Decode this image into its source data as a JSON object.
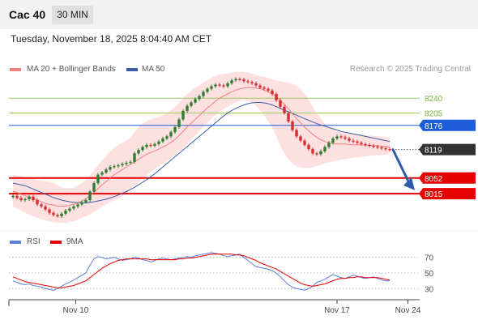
{
  "header": {
    "symbol": "Cac 40",
    "timeframe": "30 MIN"
  },
  "datetime": "Tuesday, November 18, 2025 8:04:40 AM CET",
  "legend": {
    "ma20_label": "MA 20 + Bollinger Bands",
    "ma50_label": "MA 50",
    "credit": "Research © 2025 Trading Central",
    "rsi_label": "RSI",
    "rsi_ma_label": "9MA"
  },
  "colors": {
    "ma20": "#f08080",
    "band_fill": "#fde0e0",
    "ma50": "#3b5ea8",
    "candle_up": "#2e7d32",
    "candle_down": "#d32f2f",
    "level_green": "#9ccc65",
    "level_blue": "#1e5bd8",
    "level_red": "#e60000",
    "last_price": "#333333",
    "rsi": "#5c7fdc",
    "rsi_ma": "#e60000",
    "arrow": "#2f5ca8"
  },
  "chart_data": [
    {
      "type": "candlestick",
      "title": "Cac 40",
      "timeframe": "30 MIN",
      "x_tick_labels": [
        "Nov 10",
        "Nov 17",
        "Nov 24"
      ],
      "ylim": [
        7960,
        8290
      ],
      "levels": [
        {
          "value": 8240,
          "label": "8240",
          "kind": "resistance",
          "style": "green-thin"
        },
        {
          "value": 8205,
          "label": "8205",
          "kind": "resistance",
          "style": "green-thin"
        },
        {
          "value": 8176,
          "label": "8176",
          "kind": "pivot",
          "style": "blue"
        },
        {
          "value": 8119,
          "label": "8119",
          "kind": "last",
          "style": "dark-dotted"
        },
        {
          "value": 8052,
          "label": "8052",
          "kind": "support",
          "style": "red"
        },
        {
          "value": 8015,
          "label": "8015",
          "kind": "support",
          "style": "red"
        }
      ],
      "forecast_arrow": {
        "from": 8119,
        "to": 8025
      },
      "close": [
        8010,
        8005,
        8000,
        8002,
        8008,
        8000,
        7990,
        7985,
        7978,
        7970,
        7965,
        7962,
        7968,
        7975,
        7980,
        7985,
        7990,
        7995,
        8000,
        8020,
        8040,
        8060,
        8065,
        8072,
        8078,
        8080,
        8082,
        8085,
        8088,
        8090,
        8110,
        8118,
        8125,
        8130,
        8128,
        8132,
        8138,
        8145,
        8150,
        8160,
        8172,
        8190,
        8210,
        8222,
        8230,
        8238,
        8245,
        8255,
        8262,
        8268,
        8272,
        8270,
        8268,
        8275,
        8282,
        8285,
        8284,
        8280,
        8278,
        8275,
        8270,
        8265,
        8262,
        8258,
        8250,
        8235,
        8220,
        8205,
        8185,
        8165,
        8150,
        8140,
        8130,
        8120,
        8110,
        8108,
        8115,
        8125,
        8135,
        8145,
        8150,
        8148,
        8145,
        8140,
        8138,
        8135,
        8132,
        8130,
        8128,
        8126,
        8124,
        8122,
        8120,
        8119
      ],
      "ma20": [
        8020,
        8018,
        8014,
        8010,
        8008,
        8004,
        8000,
        7996,
        7992,
        7990,
        7988,
        7986,
        7986,
        7986,
        7988,
        7990,
        7994,
        7998,
        8003,
        8010,
        8018,
        8027,
        8036,
        8044,
        8052,
        8060,
        8066,
        8072,
        8078,
        8084,
        8090,
        8096,
        8102,
        8108,
        8112,
        8116,
        8120,
        8125,
        8130,
        8136,
        8143,
        8152,
        8162,
        8172,
        8181,
        8190,
        8199,
        8208,
        8217,
        8225,
        8233,
        8240,
        8245,
        8250,
        8255,
        8259,
        8262,
        8264,
        8265,
        8265,
        8264,
        8262,
        8259,
        8255,
        8250,
        8243,
        8235,
        8226,
        8215,
        8203,
        8192,
        8182,
        8172,
        8163,
        8155,
        8148,
        8142,
        8138,
        8135,
        8133,
        8132,
        8132,
        8132,
        8131,
        8130,
        8130,
        8130,
        8129,
        8129,
        8128,
        8128,
        8127,
        8126,
        8125
      ],
      "bb_upper": [
        8060,
        8058,
        8056,
        8054,
        8052,
        8050,
        8048,
        8046,
        8044,
        8042,
        8040,
        8036,
        8030,
        8028,
        8028,
        8030,
        8034,
        8040,
        8048,
        8058,
        8070,
        8082,
        8094,
        8105,
        8115,
        8124,
        8130,
        8135,
        8140,
        8148,
        8160,
        8172,
        8180,
        8186,
        8190,
        8193,
        8196,
        8200,
        8205,
        8212,
        8220,
        8230,
        8240,
        8250,
        8258,
        8265,
        8270,
        8276,
        8282,
        8288,
        8293,
        8296,
        8297,
        8298,
        8300,
        8302,
        8302,
        8302,
        8300,
        8298,
        8295,
        8292,
        8290,
        8288,
        8285,
        8282,
        8280,
        8278,
        8276,
        8274,
        8270,
        8262,
        8250,
        8236,
        8220,
        8205,
        8192,
        8180,
        8172,
        8166,
        8162,
        8160,
        8159,
        8158,
        8156,
        8155,
        8154,
        8153,
        8152,
        8151,
        8150,
        8149,
        8148,
        8147
      ],
      "bb_lower": [
        7985,
        7980,
        7975,
        7970,
        7966,
        7962,
        7958,
        7955,
        7952,
        7950,
        7948,
        7947,
        7946,
        7946,
        7948,
        7950,
        7954,
        7958,
        7962,
        7966,
        7972,
        7978,
        7984,
        7990,
        7996,
        8000,
        8004,
        8010,
        8018,
        8026,
        8034,
        8042,
        8050,
        8058,
        8066,
        8074,
        8080,
        8086,
        8092,
        8098,
        8106,
        8114,
        8122,
        8132,
        8142,
        8152,
        8162,
        8172,
        8182,
        8192,
        8200,
        8208,
        8214,
        8220,
        8226,
        8230,
        8234,
        8236,
        8234,
        8230,
        8222,
        8212,
        8200,
        8186,
        8170,
        8150,
        8128,
        8110,
        8096,
        8086,
        8080,
        8077,
        8076,
        8076,
        8078,
        8080,
        8083,
        8086,
        8089,
        8091,
        8093,
        8095,
        8097,
        8098,
        8100,
        8101,
        8102,
        8103,
        8104,
        8105,
        8106,
        8106,
        8107,
        8108
      ],
      "ma50": [
        8040,
        8038,
        8036,
        8034,
        8030,
        8026,
        8022,
        8018,
        8014,
        8010,
        8006,
        8003,
        8000,
        7998,
        7996,
        7995,
        7994,
        7994,
        7994,
        7995,
        7996,
        7998,
        8000,
        8002,
        8005,
        8008,
        8012,
        8016,
        8020,
        8025,
        8030,
        8036,
        8042,
        8048,
        8055,
        8062,
        8070,
        8078,
        8086,
        8094,
        8102,
        8110,
        8118,
        8126,
        8134,
        8142,
        8150,
        8158,
        8166,
        8174,
        8182,
        8190,
        8198,
        8205,
        8211,
        8216,
        8220,
        8224,
        8227,
        8229,
        8230,
        8230,
        8229,
        8227,
        8224,
        8220,
        8216,
        8212,
        8208,
        8204,
        8200,
        8196,
        8192,
        8188,
        8184,
        8180,
        8177,
        8174,
        8171,
        8168,
        8165,
        8162,
        8160,
        8158,
        8156,
        8154,
        8152,
        8150,
        8148,
        8146,
        8144,
        8142,
        8140,
        8138
      ]
    },
    {
      "type": "line",
      "title": "RSI",
      "ylim": [
        20,
        80
      ],
      "y_tick_labels": [
        "70",
        "50",
        "30"
      ],
      "y_ticks": [
        70,
        50,
        30
      ],
      "series": [
        {
          "name": "RSI",
          "values": [
            40,
            38,
            36,
            35,
            36,
            34,
            33,
            32,
            30,
            29,
            28,
            30,
            33,
            36,
            38,
            41,
            44,
            47,
            50,
            60,
            68,
            71,
            70,
            68,
            69,
            70,
            68,
            66,
            67,
            68,
            70,
            69,
            67,
            66,
            64,
            66,
            68,
            69,
            68,
            67,
            68,
            69,
            70,
            71,
            70,
            72,
            73,
            74,
            75,
            76,
            75,
            74,
            72,
            71,
            72,
            73,
            74,
            70,
            66,
            62,
            58,
            57,
            56,
            55,
            53,
            50,
            45,
            40,
            35,
            32,
            30,
            29,
            28,
            30,
            33,
            38,
            40,
            42,
            45,
            48,
            46,
            44,
            43,
            45,
            47,
            46,
            44,
            43,
            44,
            45,
            43,
            41,
            40,
            40
          ]
        },
        {
          "name": "9MA",
          "values": [
            45,
            43,
            41,
            39,
            38,
            37,
            36,
            35,
            34,
            33,
            32,
            31,
            31,
            32,
            33,
            34,
            36,
            38,
            40,
            44,
            48,
            52,
            56,
            59,
            62,
            64,
            66,
            67,
            68,
            68,
            68,
            68,
            68,
            68,
            67,
            67,
            67,
            67,
            67,
            67,
            67,
            68,
            68,
            69,
            69,
            70,
            71,
            72,
            73,
            74,
            74,
            74,
            74,
            74,
            74,
            73,
            73,
            72,
            70,
            68,
            66,
            63,
            61,
            59,
            57,
            55,
            52,
            49,
            46,
            43,
            40,
            37,
            35,
            34,
            33,
            34,
            35,
            36,
            38,
            40,
            42,
            43,
            43,
            44,
            44,
            45,
            45,
            44,
            44,
            44,
            44,
            43,
            42,
            41
          ]
        }
      ]
    }
  ]
}
